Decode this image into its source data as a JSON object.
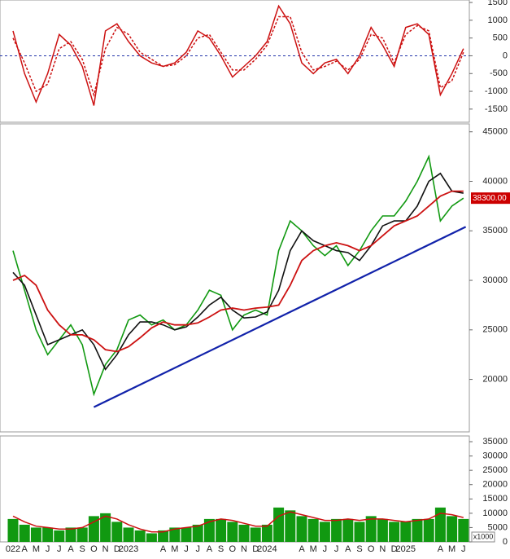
{
  "chart_data": [
    {
      "type": "line",
      "ylim": [
        -1870,
        1570
      ],
      "yticks": [
        1500,
        1000,
        500,
        0,
        -500,
        -1000,
        -1500
      ],
      "hline": 0,
      "hline_color": "#2233aa",
      "series": [
        {
          "color": "#cc1111",
          "style": "solid",
          "values": [
            700,
            -500,
            -1300,
            -500,
            600,
            300,
            -300,
            -1400,
            700,
            900,
            400,
            0,
            -200,
            -300,
            -200,
            100,
            700,
            500,
            0,
            -600,
            -300,
            0,
            400,
            1400,
            900,
            -200,
            -500,
            -200,
            -100,
            -500,
            0,
            800,
            300,
            -300,
            800,
            900,
            600,
            -1100,
            -500,
            200
          ]
        },
        {
          "color": "#cc1111",
          "style": "dashed",
          "values": [
            500,
            -200,
            -1000,
            -800,
            200,
            400,
            -100,
            -1100,
            200,
            800,
            600,
            100,
            -100,
            -300,
            -250,
            0,
            500,
            600,
            100,
            -400,
            -400,
            -100,
            300,
            1100,
            1100,
            100,
            -400,
            -300,
            -150,
            -400,
            -100,
            600,
            500,
            -200,
            600,
            850,
            700,
            -900,
            -700,
            100
          ]
        }
      ]
    },
    {
      "type": "line",
      "ylim": [
        14700,
        45800
      ],
      "yticks": [
        20000,
        25000,
        30000,
        35000,
        40000,
        45000
      ],
      "last_price": {
        "value": 38300,
        "label": "38300.00"
      },
      "last_price_color": "#cc0000",
      "series": [
        {
          "color": "#119911",
          "width": 1.6,
          "values": [
            33000,
            29000,
            25000,
            22500,
            24000,
            25500,
            23500,
            18500,
            21500,
            23000,
            26000,
            26500,
            25500,
            26000,
            25000,
            25500,
            27000,
            29000,
            28500,
            25000,
            26500,
            27000,
            26500,
            33000,
            36000,
            35000,
            33500,
            32500,
            33500,
            31500,
            33000,
            35000,
            36500,
            36500,
            38000,
            40000,
            42500,
            36000,
            37500,
            38300
          ]
        },
        {
          "color": "#111111",
          "width": 1.6,
          "values": [
            30800,
            29500,
            26500,
            23500,
            24000,
            24500,
            25000,
            23500,
            21000,
            22500,
            24500,
            25800,
            25800,
            25500,
            25000,
            25300,
            26300,
            27500,
            28300,
            27000,
            26200,
            26300,
            26800,
            29000,
            33000,
            35000,
            34000,
            33500,
            33000,
            32800,
            32000,
            33500,
            35500,
            36000,
            36000,
            37500,
            40000,
            40800,
            39000,
            38800
          ]
        },
        {
          "color": "#cc1111",
          "width": 1.8,
          "values": [
            30000,
            30500,
            29500,
            27000,
            25500,
            24500,
            24500,
            24000,
            23000,
            22800,
            23300,
            24200,
            25200,
            25800,
            25500,
            25500,
            25700,
            26300,
            27000,
            27200,
            27000,
            27200,
            27300,
            27500,
            29500,
            32000,
            33000,
            33500,
            33800,
            33500,
            33000,
            33500,
            34500,
            35500,
            36000,
            36500,
            37500,
            38500,
            39000,
            39000
          ]
        },
        {
          "color": "#1122aa",
          "width": 2.2,
          "x": [
            7,
            39.2
          ],
          "values": [
            17200,
            35400
          ]
        }
      ]
    },
    {
      "type": "bar",
      "ylim": [
        0,
        37000
      ],
      "yticks": [
        0,
        5000,
        10000,
        15000,
        20000,
        25000,
        30000,
        35000
      ],
      "unit_label": "x1000",
      "categories": [
        "022",
        "A",
        "M",
        "J",
        "J",
        "A",
        "S",
        "O",
        "N",
        "D",
        "2023",
        null,
        null,
        "A",
        "M",
        "J",
        "J",
        "A",
        "S",
        "O",
        "N",
        "D",
        "2024",
        null,
        null,
        "A",
        "M",
        "J",
        "J",
        "A",
        "S",
        "O",
        "N",
        "D",
        "2025",
        null,
        null,
        "A",
        "M",
        "J"
      ],
      "color": "#119911",
      "values": [
        8000,
        6000,
        5000,
        5000,
        4000,
        5000,
        5000,
        9000,
        10000,
        7000,
        5000,
        4000,
        3000,
        4000,
        5000,
        5000,
        6000,
        8000,
        8000,
        7000,
        6000,
        5000,
        6000,
        12000,
        11000,
        9000,
        8000,
        7000,
        8000,
        8000,
        7000,
        9000,
        8000,
        7000,
        7000,
        8000,
        8000,
        12000,
        9000,
        8000
      ],
      "series": [
        {
          "color": "#cc1111",
          "values": [
            9000,
            7000,
            5500,
            5000,
            4500,
            4500,
            5000,
            7000,
            9000,
            8000,
            6000,
            4500,
            3500,
            3500,
            4500,
            5000,
            5500,
            7000,
            8000,
            7500,
            6500,
            5500,
            5500,
            9000,
            10500,
            9500,
            8500,
            7500,
            7500,
            8000,
            7500,
            8000,
            8000,
            7500,
            7000,
            7500,
            8000,
            10000,
            9500,
            8500
          ]
        }
      ]
    }
  ]
}
